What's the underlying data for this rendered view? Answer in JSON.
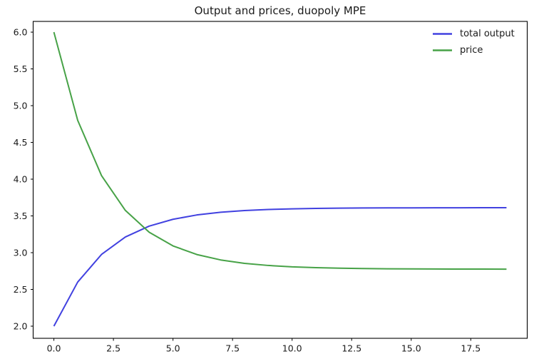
{
  "figure": {
    "background": "#ffffff",
    "frame_color": "#000000"
  },
  "chart_data": {
    "type": "line",
    "title": "Output and prices, duopoly MPE",
    "xlabel": "",
    "ylabel": "",
    "x": [
      0,
      1,
      2,
      3,
      4,
      5,
      6,
      7,
      8,
      9,
      10,
      11,
      12,
      13,
      14,
      15,
      16,
      17,
      18,
      19
    ],
    "series": [
      {
        "name": "total output",
        "color": "#4141e0",
        "line_width": 2,
        "values": [
          2.0,
          2.6,
          2.976,
          3.213,
          3.361,
          3.454,
          3.513,
          3.55,
          3.573,
          3.587,
          3.596,
          3.602,
          3.606,
          3.608,
          3.61,
          3.61,
          3.611,
          3.611,
          3.612,
          3.612
        ]
      },
      {
        "name": "price",
        "color": "#47a247",
        "line_width": 2,
        "values": [
          6.0,
          4.8,
          4.048,
          3.575,
          3.278,
          3.092,
          2.975,
          2.901,
          2.855,
          2.826,
          2.807,
          2.796,
          2.789,
          2.784,
          2.781,
          2.779,
          2.778,
          2.777,
          2.777,
          2.776
        ]
      }
    ],
    "xlim": [
      -0.87,
      19.87
    ],
    "ylim": [
      1.835,
      6.146
    ],
    "x_ticks": [
      0.0,
      2.5,
      5.0,
      7.5,
      10.0,
      12.5,
      15.0,
      17.5
    ],
    "x_tick_labels": [
      "0.0",
      "2.5",
      "5.0",
      "7.5",
      "10.0",
      "12.5",
      "15.0",
      "17.5"
    ],
    "y_ticks": [
      2.0,
      2.5,
      3.0,
      3.5,
      4.0,
      4.5,
      5.0,
      5.5,
      6.0
    ],
    "y_tick_labels": [
      "2.0",
      "2.5",
      "3.0",
      "3.5",
      "4.0",
      "4.5",
      "5.0",
      "5.5",
      "6.0"
    ],
    "grid": false,
    "legend_position": "upper right",
    "legend": [
      "total output",
      "price"
    ]
  }
}
